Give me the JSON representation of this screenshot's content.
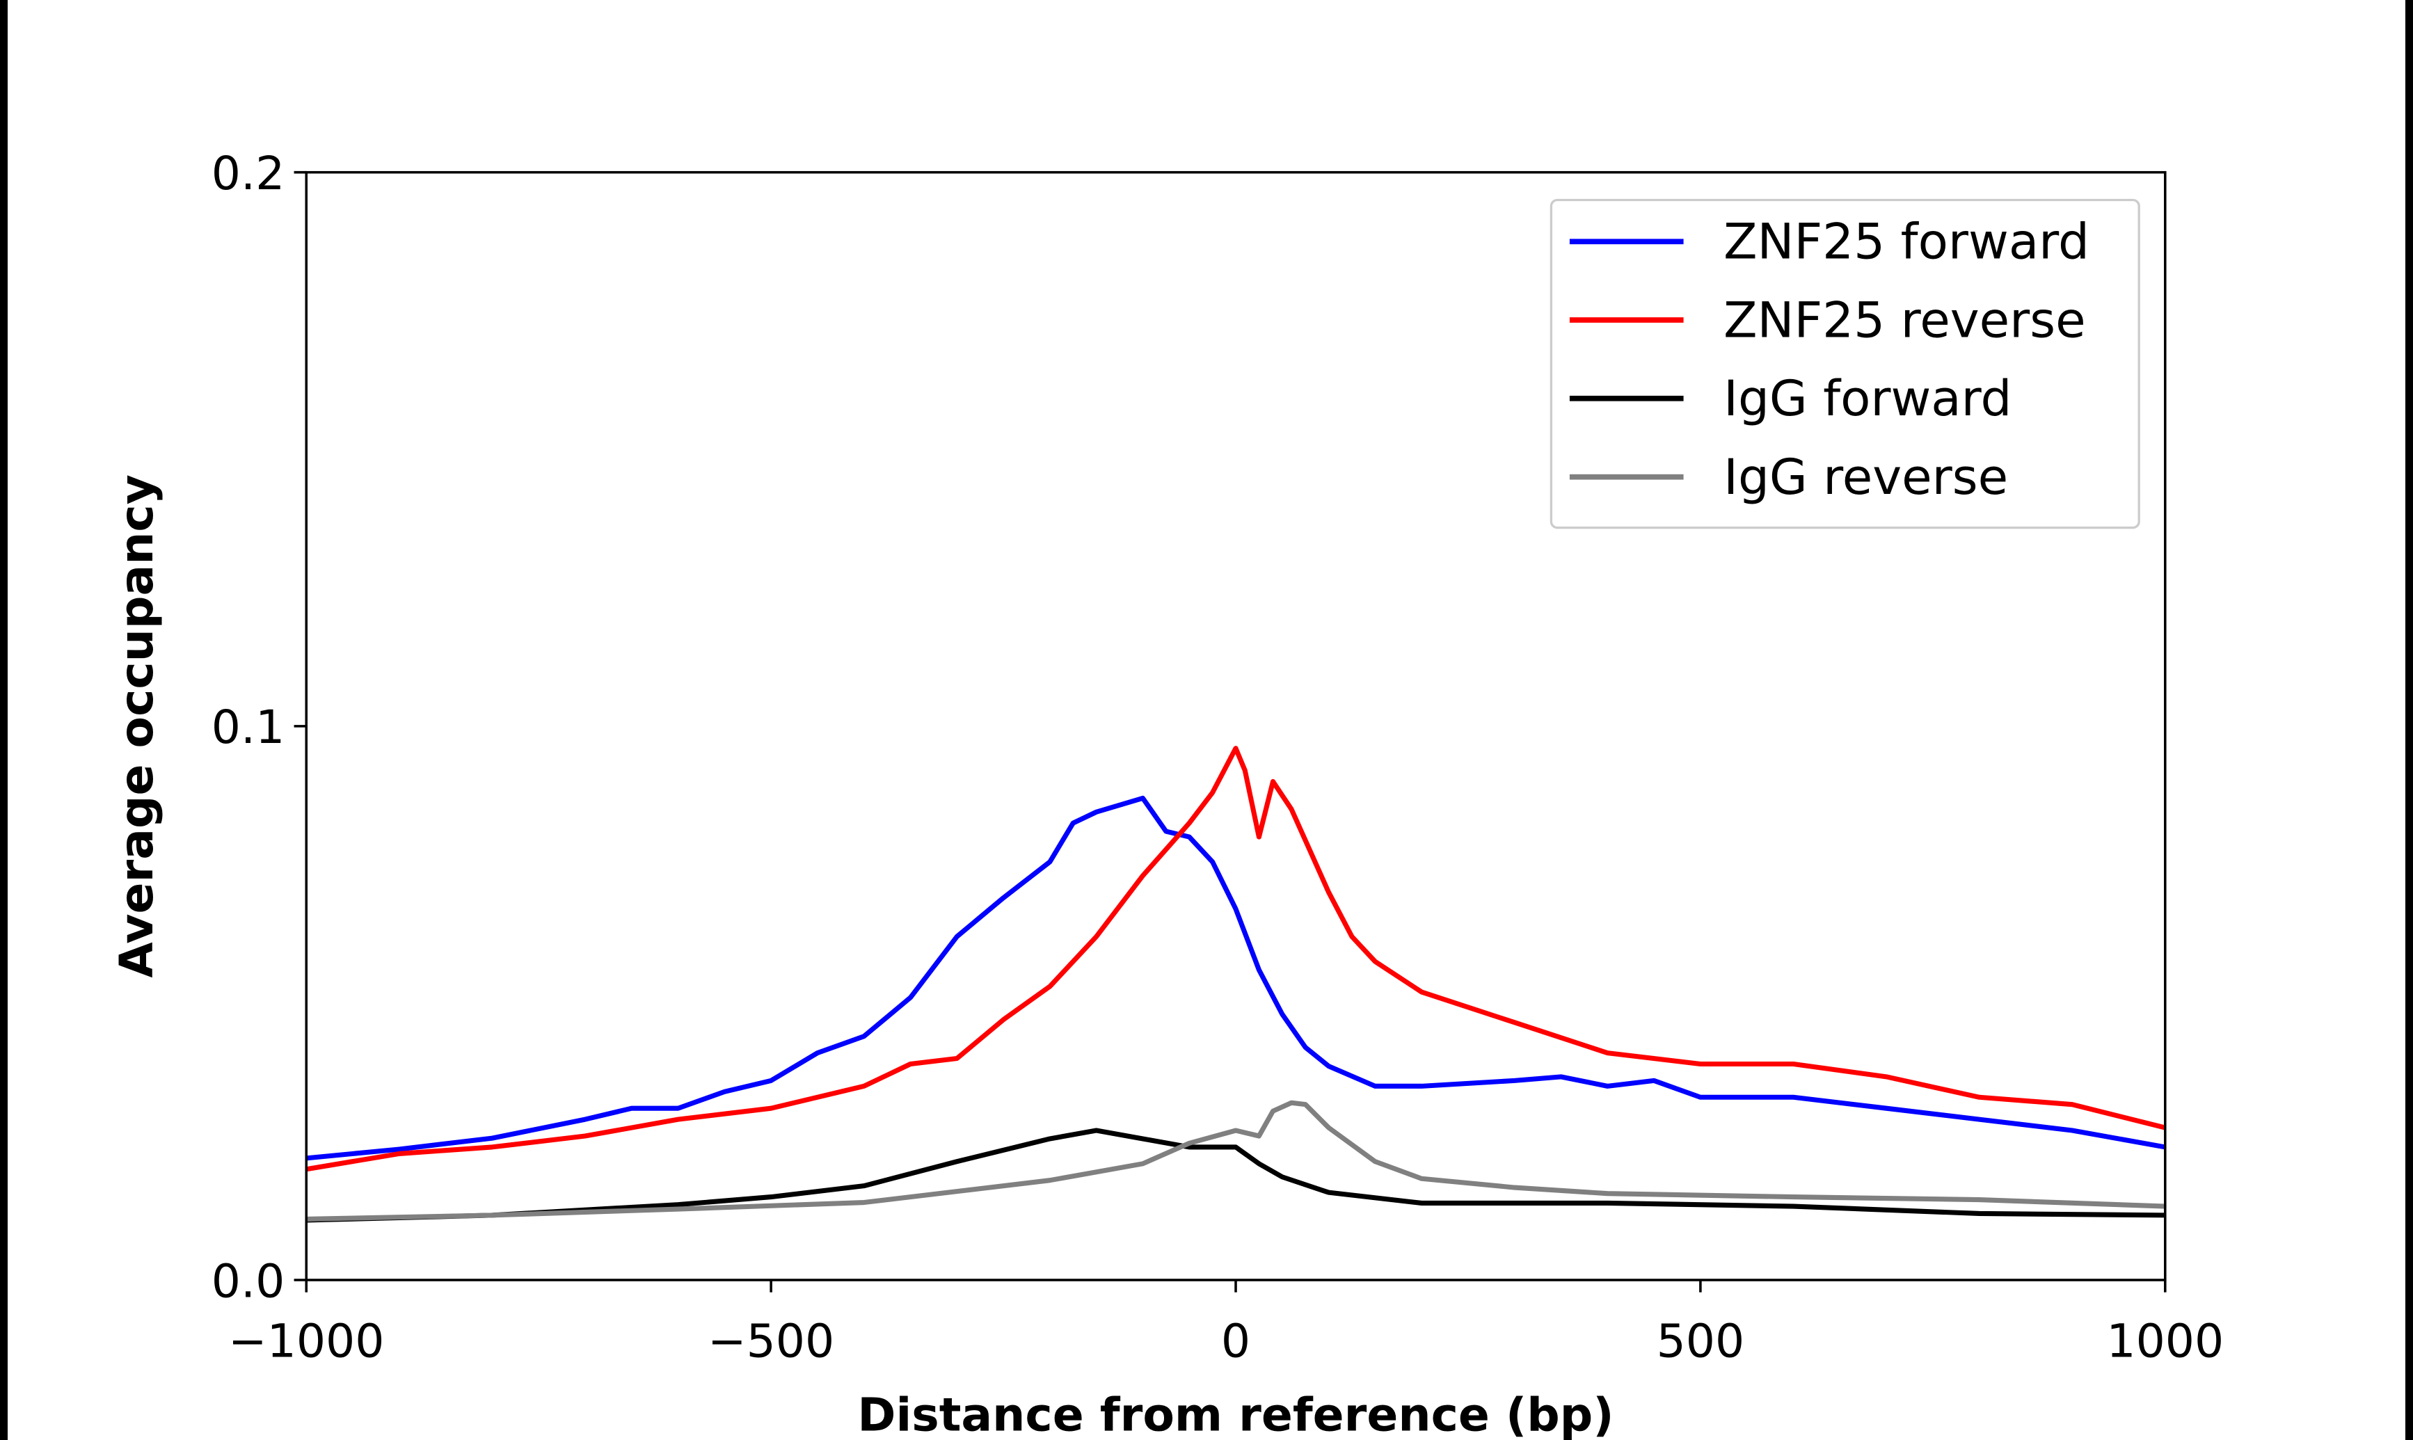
{
  "chart_data": {
    "type": "line",
    "title": "",
    "xlabel": "Distance from reference (bp)",
    "ylabel": "Average occupancy",
    "xlim": [
      -1000,
      1000
    ],
    "ylim": [
      0,
      0.2
    ],
    "xticks": [
      -1000,
      -500,
      0,
      500,
      1000
    ],
    "xtick_labels": [
      "−1000",
      "−500",
      "0",
      "500",
      "1000"
    ],
    "yticks": [
      0.0,
      0.1,
      0.2
    ],
    "ytick_labels": [
      "0.0",
      "0.1",
      "0.2"
    ],
    "grid": false,
    "legend_position": "top-right",
    "series": [
      {
        "name": "ZNF25 forward",
        "color": "#0000ff",
        "x": [
          -1000,
          -900,
          -800,
          -700,
          -650,
          -600,
          -550,
          -500,
          -450,
          -400,
          -350,
          -300,
          -250,
          -200,
          -175,
          -150,
          -100,
          -75,
          -50,
          -25,
          0,
          25,
          50,
          75,
          100,
          150,
          200,
          300,
          350,
          400,
          450,
          500,
          600,
          700,
          800,
          900,
          1000
        ],
        "y": [
          0.022,
          0.0236,
          0.0256,
          0.029,
          0.031,
          0.031,
          0.034,
          0.036,
          0.041,
          0.044,
          0.051,
          0.062,
          0.069,
          0.0755,
          0.0825,
          0.0845,
          0.087,
          0.081,
          0.08,
          0.0755,
          0.067,
          0.056,
          0.048,
          0.042,
          0.0386,
          0.035,
          0.035,
          0.036,
          0.0367,
          0.035,
          0.036,
          0.033,
          0.033,
          0.031,
          0.029,
          0.027,
          0.024
        ]
      },
      {
        "name": "ZNF25 reverse",
        "color": "#ff0000",
        "x": [
          -1000,
          -900,
          -800,
          -700,
          -600,
          -500,
          -400,
          -350,
          -300,
          -250,
          -200,
          -150,
          -100,
          -50,
          -25,
          0,
          10,
          25,
          40,
          60,
          100,
          125,
          150,
          200,
          300,
          400,
          500,
          600,
          700,
          800,
          900,
          1000
        ],
        "y": [
          0.02,
          0.0228,
          0.024,
          0.026,
          0.029,
          0.031,
          0.035,
          0.039,
          0.04,
          0.047,
          0.053,
          0.062,
          0.073,
          0.0825,
          0.088,
          0.096,
          0.092,
          0.08,
          0.09,
          0.085,
          0.07,
          0.062,
          0.0575,
          0.052,
          0.0465,
          0.041,
          0.039,
          0.039,
          0.0367,
          0.033,
          0.0317,
          0.0275
        ]
      },
      {
        "name": "IgG forward",
        "color": "#000000",
        "x": [
          -1000,
          -800,
          -600,
          -500,
          -400,
          -300,
          -200,
          -150,
          -100,
          -50,
          0,
          25,
          50,
          100,
          200,
          400,
          600,
          800,
          1000
        ],
        "y": [
          0.0108,
          0.0117,
          0.0136,
          0.015,
          0.017,
          0.0214,
          0.0255,
          0.027,
          0.0255,
          0.024,
          0.024,
          0.021,
          0.0186,
          0.0158,
          0.0139,
          0.0139,
          0.0133,
          0.012,
          0.0117
        ]
      },
      {
        "name": "IgG reverse",
        "color": "#808080",
        "x": [
          -1000,
          -800,
          -600,
          -400,
          -300,
          -200,
          -100,
          -50,
          0,
          25,
          40,
          60,
          75,
          100,
          150,
          200,
          300,
          400,
          600,
          800,
          1000
        ],
        "y": [
          0.011,
          0.0117,
          0.0128,
          0.014,
          0.016,
          0.018,
          0.021,
          0.0247,
          0.027,
          0.026,
          0.0305,
          0.032,
          0.0317,
          0.0275,
          0.0214,
          0.0183,
          0.0167,
          0.0156,
          0.015,
          0.0145,
          0.0133
        ]
      }
    ]
  }
}
